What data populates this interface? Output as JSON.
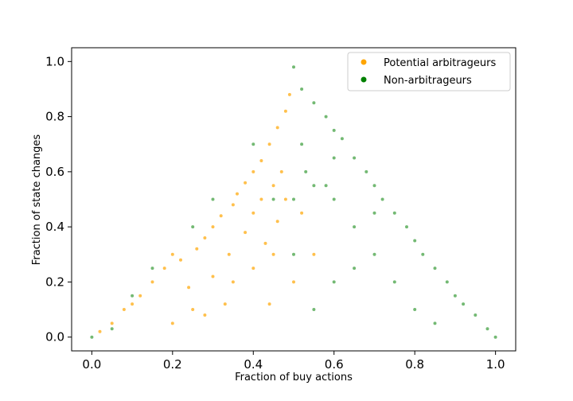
{
  "chart_data": {
    "type": "scatter",
    "xlabel": "Fraction of buy actions",
    "ylabel": "Fraction of state changes",
    "xlim": [
      -0.05,
      1.05
    ],
    "ylim": [
      -0.05,
      1.05
    ],
    "xticks": [
      "0.0",
      "0.2",
      "0.4",
      "0.6",
      "0.8",
      "1.0"
    ],
    "yticks": [
      "0.0",
      "0.2",
      "0.4",
      "0.6",
      "0.8",
      "1.0"
    ],
    "grid": false,
    "legend_position": "top-right",
    "series": [
      {
        "name": "Potential arbitrageurs",
        "color": "#ffa500",
        "points": [
          [
            0.02,
            0.02
          ],
          [
            0.05,
            0.05
          ],
          [
            0.08,
            0.1
          ],
          [
            0.1,
            0.12
          ],
          [
            0.12,
            0.15
          ],
          [
            0.15,
            0.2
          ],
          [
            0.18,
            0.25
          ],
          [
            0.2,
            0.3
          ],
          [
            0.22,
            0.28
          ],
          [
            0.24,
            0.18
          ],
          [
            0.26,
            0.32
          ],
          [
            0.28,
            0.36
          ],
          [
            0.3,
            0.4
          ],
          [
            0.3,
            0.22
          ],
          [
            0.32,
            0.44
          ],
          [
            0.34,
            0.3
          ],
          [
            0.35,
            0.48
          ],
          [
            0.36,
            0.52
          ],
          [
            0.38,
            0.56
          ],
          [
            0.38,
            0.38
          ],
          [
            0.4,
            0.6
          ],
          [
            0.4,
            0.45
          ],
          [
            0.42,
            0.64
          ],
          [
            0.42,
            0.5
          ],
          [
            0.43,
            0.34
          ],
          [
            0.44,
            0.7
          ],
          [
            0.45,
            0.55
          ],
          [
            0.46,
            0.76
          ],
          [
            0.46,
            0.42
          ],
          [
            0.47,
            0.6
          ],
          [
            0.48,
            0.82
          ],
          [
            0.48,
            0.5
          ],
          [
            0.49,
            0.88
          ],
          [
            0.45,
            0.3
          ],
          [
            0.5,
            0.2
          ],
          [
            0.35,
            0.2
          ],
          [
            0.25,
            0.1
          ],
          [
            0.4,
            0.25
          ],
          [
            0.55,
            0.3
          ],
          [
            0.52,
            0.45
          ],
          [
            0.44,
            0.12
          ],
          [
            0.33,
            0.12
          ],
          [
            0.2,
            0.05
          ],
          [
            0.28,
            0.08
          ]
        ]
      },
      {
        "name": "Non-arbitrageurs",
        "color": "#008000",
        "points": [
          [
            0.5,
            0.98
          ],
          [
            0.52,
            0.9
          ],
          [
            0.55,
            0.85
          ],
          [
            0.58,
            0.8
          ],
          [
            0.6,
            0.75
          ],
          [
            0.62,
            0.72
          ],
          [
            0.65,
            0.65
          ],
          [
            0.68,
            0.6
          ],
          [
            0.7,
            0.55
          ],
          [
            0.72,
            0.5
          ],
          [
            0.75,
            0.45
          ],
          [
            0.78,
            0.4
          ],
          [
            0.8,
            0.35
          ],
          [
            0.82,
            0.3
          ],
          [
            0.85,
            0.25
          ],
          [
            0.88,
            0.2
          ],
          [
            0.9,
            0.15
          ],
          [
            0.92,
            0.12
          ],
          [
            0.95,
            0.08
          ],
          [
            0.98,
            0.03
          ],
          [
            1.0,
            0.0
          ],
          [
            0.5,
            0.5
          ],
          [
            0.55,
            0.55
          ],
          [
            0.6,
            0.5
          ],
          [
            0.65,
            0.4
          ],
          [
            0.7,
            0.3
          ],
          [
            0.75,
            0.2
          ],
          [
            0.8,
            0.1
          ],
          [
            0.85,
            0.05
          ],
          [
            0.6,
            0.2
          ],
          [
            0.55,
            0.1
          ],
          [
            0.5,
            0.3
          ],
          [
            0.45,
            0.5
          ],
          [
            0.4,
            0.7
          ],
          [
            0.3,
            0.5
          ],
          [
            0.25,
            0.4
          ],
          [
            0.15,
            0.25
          ],
          [
            0.1,
            0.15
          ],
          [
            0.0,
            0.0
          ],
          [
            0.05,
            0.03
          ],
          [
            0.6,
            0.65
          ],
          [
            0.58,
            0.55
          ],
          [
            0.7,
            0.45
          ],
          [
            0.65,
            0.25
          ],
          [
            0.52,
            0.7
          ],
          [
            0.53,
            0.6
          ]
        ]
      }
    ]
  }
}
